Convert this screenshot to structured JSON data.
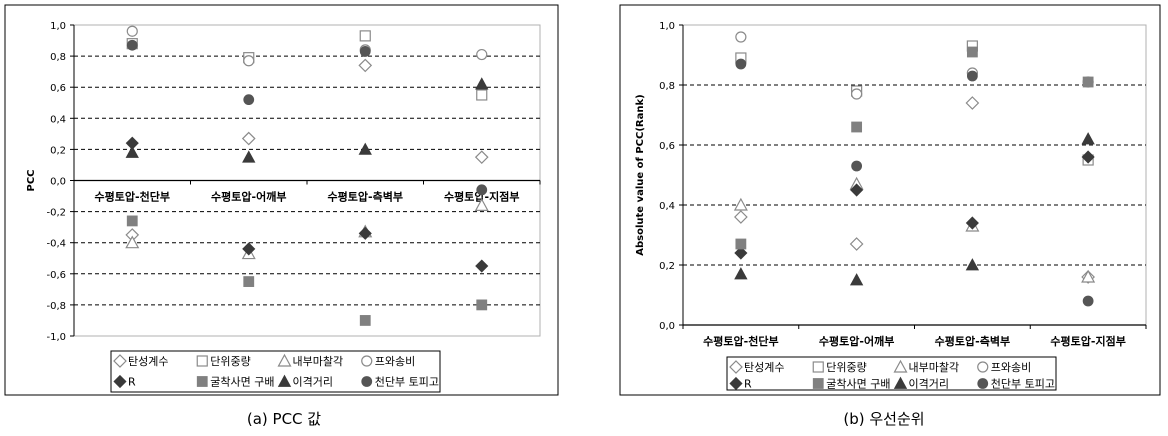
{
  "chart_data": [
    {
      "type": "scatter",
      "caption": "(a) PCC 값",
      "ylabel": "PCC",
      "ylim": [
        -1.0,
        1.0
      ],
      "yticks": [
        "1,0",
        "0,8",
        "0,6",
        "0,4",
        "0,2",
        "0,0",
        "-0,2",
        "-0,4",
        "-0,6",
        "-0,8",
        "-1,0"
      ],
      "ytick_values": [
        1.0,
        0.8,
        0.6,
        0.4,
        0.2,
        0.0,
        -0.2,
        -0.4,
        -0.6,
        -0.8,
        -1.0
      ],
      "categories": [
        "수평토압-천단부",
        "수평토압-어깨부",
        "수평토압-측벽부",
        "수평토압-지점부"
      ],
      "grid": "horizontal-dashed",
      "legend": "bottom",
      "series": [
        {
          "name": "탄성계수",
          "marker": "diamond-open",
          "values": [
            -0.35,
            0.27,
            0.74,
            0.15
          ]
        },
        {
          "name": "단위중량",
          "marker": "square-open",
          "values": [
            0.88,
            0.79,
            0.93,
            0.55
          ]
        },
        {
          "name": "내부마찰각",
          "marker": "triangle-open",
          "values": [
            -0.4,
            -0.47,
            -0.33,
            -0.16
          ]
        },
        {
          "name": "프와송비",
          "marker": "circle-open",
          "values": [
            0.96,
            0.77,
            0.84,
            0.81
          ]
        },
        {
          "name": "R",
          "marker": "diamond-filled",
          "values": [
            0.24,
            -0.44,
            -0.34,
            -0.55
          ]
        },
        {
          "name": "굴착사면 구배",
          "marker": "square-filled",
          "values": [
            -0.26,
            -0.65,
            -0.9,
            -0.8
          ]
        },
        {
          "name": "이격거리",
          "marker": "triangle-filled",
          "values": [
            0.18,
            0.15,
            0.2,
            0.62
          ]
        },
        {
          "name": "천단부 토피고",
          "marker": "circle-filled",
          "values": [
            0.87,
            0.52,
            0.83,
            -0.06
          ]
        }
      ]
    },
    {
      "type": "scatter",
      "caption": "(b) 우선순위",
      "ylabel": "Absolute value of PCC(Rank)",
      "ylim": [
        0.0,
        1.0
      ],
      "yticks": [
        "1,0",
        "0,8",
        "0,6",
        "0,4",
        "0,2",
        "0,0"
      ],
      "ytick_values": [
        1.0,
        0.8,
        0.6,
        0.4,
        0.2,
        0.0
      ],
      "categories": [
        "수평토압-천단부",
        "수평토압-어깨부",
        "수평토압-측벽부",
        "수평토압-지점부"
      ],
      "grid": "horizontal-dashed",
      "legend": "bottom",
      "series": [
        {
          "name": "탄성계수",
          "marker": "diamond-open",
          "values": [
            0.36,
            0.27,
            0.74,
            0.16
          ]
        },
        {
          "name": "단위중량",
          "marker": "square-open",
          "values": [
            0.89,
            0.78,
            0.93,
            0.55
          ]
        },
        {
          "name": "내부마찰각",
          "marker": "triangle-open",
          "values": [
            0.4,
            0.47,
            0.33,
            0.16
          ]
        },
        {
          "name": "프와송비",
          "marker": "circle-open",
          "values": [
            0.96,
            0.77,
            0.84,
            0.81
          ]
        },
        {
          "name": "R",
          "marker": "diamond-filled",
          "values": [
            0.24,
            0.45,
            0.34,
            0.56
          ]
        },
        {
          "name": "굴착사면 구배",
          "marker": "square-filled",
          "values": [
            0.27,
            0.66,
            0.91,
            0.81
          ]
        },
        {
          "name": "이격거리",
          "marker": "triangle-filled",
          "values": [
            0.17,
            0.15,
            0.2,
            0.62
          ]
        },
        {
          "name": "천단부 토피고",
          "marker": "circle-filled",
          "values": [
            0.87,
            0.53,
            0.83,
            0.08
          ]
        }
      ]
    }
  ],
  "colors": {
    "open_stroke": "#8a8a8a",
    "filled": "#3a3a3a",
    "square_filled": "#808080",
    "circle_filled": "#555555",
    "frame": "#000000",
    "grid": "#000000"
  }
}
